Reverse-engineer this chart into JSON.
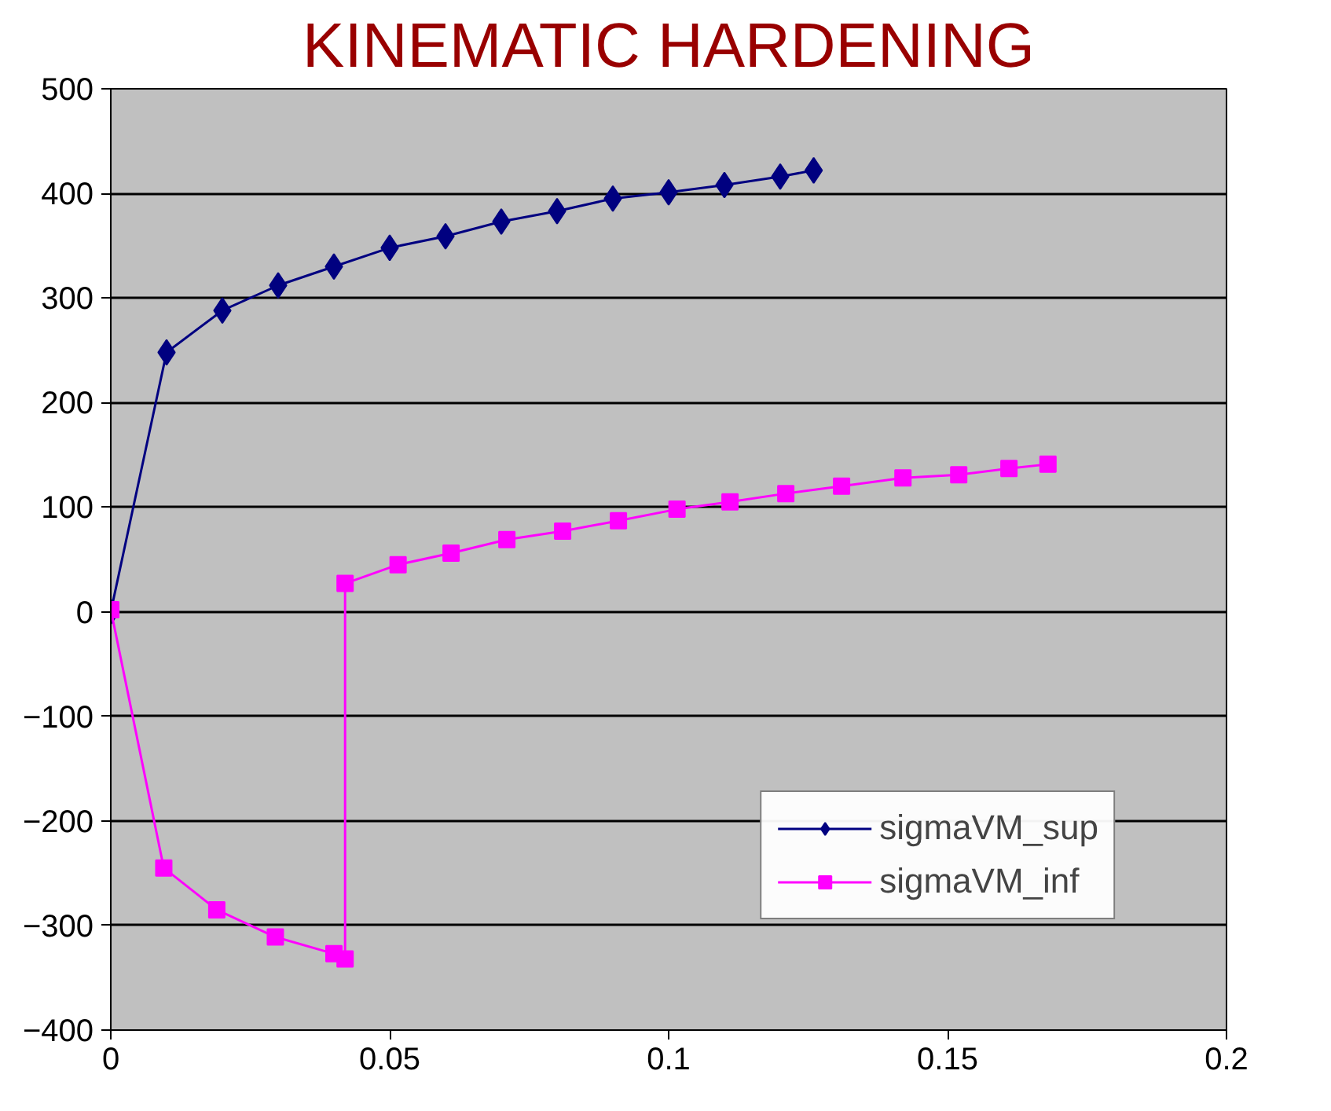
{
  "chart_data": {
    "type": "line",
    "title": "KINEMATIC HARDENING",
    "xlim": [
      0,
      0.2
    ],
    "xticks": [
      0,
      0.05,
      0.1,
      0.15,
      0.2
    ],
    "ylim": [
      -400,
      500
    ],
    "yticks": [
      -400,
      -300,
      -200,
      -100,
      0,
      100,
      200,
      300,
      400,
      500
    ],
    "grid": "y",
    "legend": "bottom right",
    "line_style": "solid",
    "series": [
      {
        "name": "sigmaVM_sup",
        "color": "#000080",
        "marker": "diamond",
        "x": [
          0,
          0.01,
          0.02,
          0.03,
          0.04,
          0.05,
          0.06,
          0.07,
          0.08,
          0.09,
          0.1,
          0.11,
          0.12,
          0.126
        ],
        "values": [
          0,
          248,
          288,
          312,
          330,
          348,
          359,
          373,
          383,
          395,
          401,
          408,
          416,
          422
        ]
      },
      {
        "name": "sigmaVM_inf",
        "color": "#ff00ff",
        "marker": "square",
        "x": [
          0,
          0.0095,
          0.019,
          0.0295,
          0.04,
          0.042,
          0.042,
          0.0515,
          0.061,
          0.071,
          0.081,
          0.091,
          0.1015,
          0.111,
          0.121,
          0.131,
          0.142,
          0.152,
          0.161,
          0.168
        ],
        "values": [
          2,
          -245,
          -285,
          -311,
          -327,
          -332,
          27,
          45,
          56,
          69,
          77,
          87,
          98,
          105,
          113,
          120,
          128,
          131,
          137,
          141
        ]
      }
    ]
  }
}
